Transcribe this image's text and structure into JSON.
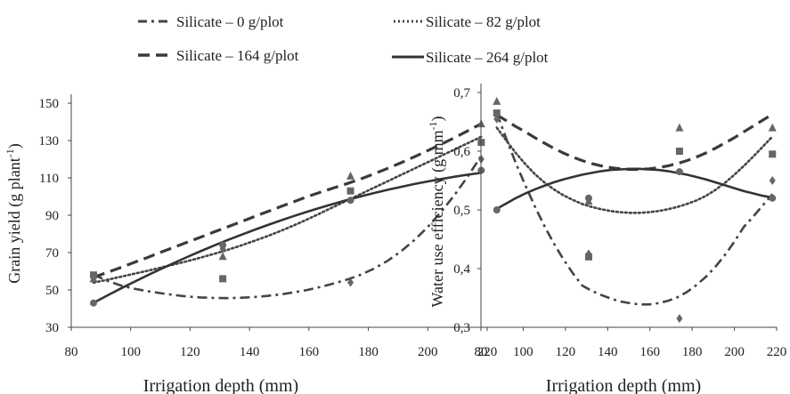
{
  "chart_data": [
    {
      "type": "scatter",
      "xlabel": "Irrigation depth (mm)",
      "ylabel": "Grain yield (g plant-1)",
      "ylabel_main": "Grain yield (g plant",
      "ylabel_sup": "-1",
      "ylabel_tail": ")",
      "xlim": [
        80,
        220
      ],
      "ylim": [
        30,
        150
      ],
      "xticks": [
        80,
        100,
        120,
        140,
        160,
        180,
        200,
        220
      ],
      "yticks": [
        30,
        50,
        70,
        90,
        110,
        130,
        150
      ],
      "grid": false,
      "series": [
        {
          "name": "Silicate – 0 g/plot",
          "style": "dashdot",
          "marker": "diamond",
          "x": [
            87.5,
            131,
            174,
            218
          ],
          "y": [
            57,
            72,
            54,
            120
          ],
          "fit": [
            58.2,
            55.0,
            52.5,
            50.7,
            49.4,
            48.3,
            47.3,
            46.5,
            46.0,
            45.7,
            45.6,
            45.8,
            46.2,
            46.8,
            47.6,
            48.7,
            50.0,
            51.6,
            53.5,
            55.6,
            58.2,
            61.5,
            65.6,
            70.7,
            76.7,
            83.7,
            91.8,
            100.8,
            110.8,
            121.8
          ]
        },
        {
          "name": "Silicate – 82 g/plot",
          "style": "dotted",
          "marker": "square",
          "x": [
            87.5,
            131,
            174,
            218
          ],
          "y": [
            58,
            56,
            103,
            129
          ],
          "fit": [
            53.9,
            55.4,
            57.0,
            58.6,
            60.2,
            61.9,
            63.6,
            65.4,
            67.3,
            69.3,
            71.4,
            73.7,
            76.2,
            78.8,
            81.6,
            84.6,
            87.8,
            91.2,
            94.6,
            98.0,
            101.4,
            104.8,
            108.2,
            111.6,
            115.0,
            118.4,
            121.8,
            125.2,
            128.6,
            132.0
          ]
        },
        {
          "name": "Silicate – 164 g/plot",
          "style": "dashed",
          "marker": "triangle",
          "x": [
            87.5,
            131,
            174,
            218
          ],
          "y": [
            56,
            68,
            111,
            139
          ],
          "fit": [
            56.8,
            59.3,
            61.9,
            64.6,
            67.3,
            70.1,
            72.8,
            75.5,
            78.2,
            81.0,
            83.7,
            86.4,
            89.2,
            91.9,
            94.6,
            97.3,
            100.0,
            102.4,
            104.7,
            107.0,
            109.5,
            112.2,
            115.1,
            118.1,
            121.3,
            124.6,
            128.0,
            131.5,
            135.2,
            139.0
          ]
        },
        {
          "name": "Silicate – 264 g/plot",
          "style": "solid",
          "marker": "circle",
          "x": [
            87.5,
            131,
            174,
            218
          ],
          "y": [
            43,
            74,
            98,
            114
          ],
          "fit": [
            43.1,
            46.9,
            50.6,
            54.2,
            57.7,
            61.1,
            64.4,
            67.6,
            70.7,
            73.7,
            76.6,
            79.4,
            82.1,
            84.7,
            87.2,
            89.6,
            91.9,
            94.1,
            96.2,
            98.2,
            100.1,
            101.9,
            103.6,
            105.2,
            106.7,
            108.1,
            109.4,
            110.6,
            111.7,
            112.7
          ]
        }
      ]
    },
    {
      "type": "scatter",
      "xlabel": "Irrigation depth (mm)",
      "ylabel": "Water use efficiency (g mm-1)",
      "ylabel_main": "Water use efficiency (g mm",
      "ylabel_sup": "-1",
      "ylabel_tail": ")",
      "xlim": [
        80,
        220
      ],
      "ylim": [
        0.3,
        0.7
      ],
      "xticks": [
        80,
        100,
        120,
        140,
        160,
        180,
        200,
        220
      ],
      "yticks": [
        0.3,
        0.4,
        0.5,
        0.6,
        0.7
      ],
      "ytick_labels": [
        "0,3",
        "0,4",
        "0,5",
        "0,6",
        "0,7"
      ],
      "grid": false,
      "series": [
        {
          "name": "Silicate – 0 g/plot",
          "style": "dashdot",
          "marker": "diamond",
          "x": [
            87.5,
            131,
            174,
            218
          ],
          "y": [
            0.655,
            0.425,
            0.315,
            0.55
          ],
          "fit": [
            0.665,
            0.621,
            0.58,
            0.542,
            0.506,
            0.473,
            0.443,
            0.416,
            0.392,
            0.371,
            0.362,
            0.355,
            0.349,
            0.344,
            0.341,
            0.339,
            0.339,
            0.341,
            0.345,
            0.351,
            0.36,
            0.372,
            0.386,
            0.403,
            0.423,
            0.446,
            0.471,
            0.489,
            0.508,
            0.527
          ]
        },
        {
          "name": "Silicate – 82 g/plot",
          "style": "dotted",
          "marker": "square",
          "x": [
            87.5,
            131,
            174,
            218
          ],
          "y": [
            0.665,
            0.42,
            0.6,
            0.595
          ],
          "fit": [
            0.64,
            0.618,
            0.597,
            0.578,
            0.561,
            0.547,
            0.535,
            0.525,
            0.517,
            0.51,
            0.505,
            0.501,
            0.498,
            0.496,
            0.495,
            0.495,
            0.496,
            0.498,
            0.501,
            0.505,
            0.51,
            0.516,
            0.524,
            0.534,
            0.546,
            0.56,
            0.575,
            0.591,
            0.608,
            0.625
          ]
        },
        {
          "name": "Silicate – 164 g/plot",
          "style": "dashed",
          "marker": "triangle",
          "x": [
            87.5,
            131,
            174,
            218
          ],
          "y": [
            0.685,
            0.515,
            0.64,
            0.64
          ],
          "fit": [
            0.662,
            0.652,
            0.642,
            0.633,
            0.623,
            0.614,
            0.605,
            0.597,
            0.59,
            0.584,
            0.579,
            0.575,
            0.572,
            0.57,
            0.569,
            0.569,
            0.57,
            0.572,
            0.575,
            0.579,
            0.584,
            0.59,
            0.597,
            0.605,
            0.614,
            0.623,
            0.633,
            0.643,
            0.653,
            0.663
          ]
        },
        {
          "name": "Silicate – 264 g/plot",
          "style": "solid",
          "marker": "circle",
          "x": [
            87.5,
            131,
            174,
            218
          ],
          "y": [
            0.5,
            0.52,
            0.565,
            0.52
          ],
          "fit": [
            0.502,
            0.511,
            0.52,
            0.528,
            0.535,
            0.541,
            0.547,
            0.552,
            0.556,
            0.56,
            0.563,
            0.566,
            0.568,
            0.569,
            0.57,
            0.57,
            0.569,
            0.568,
            0.566,
            0.563,
            0.56,
            0.556,
            0.552,
            0.547,
            0.542,
            0.537,
            0.532,
            0.528,
            0.524,
            0.521
          ]
        }
      ]
    }
  ],
  "legend": {
    "items": [
      {
        "label": "Silicate – 0 g/plot",
        "style": "dashdot"
      },
      {
        "label": "Silicate – 82 g/plot",
        "style": "dotted"
      },
      {
        "label": "Silicate – 164 g/plot",
        "style": "dashed"
      },
      {
        "label": "Silicate – 264 g/plot",
        "style": "solid"
      }
    ]
  },
  "colors": {
    "dashdot": "#444444",
    "dotted": "#444444",
    "dashed": "#3a3a3a",
    "solid": "#333333",
    "marker": "#666666"
  }
}
